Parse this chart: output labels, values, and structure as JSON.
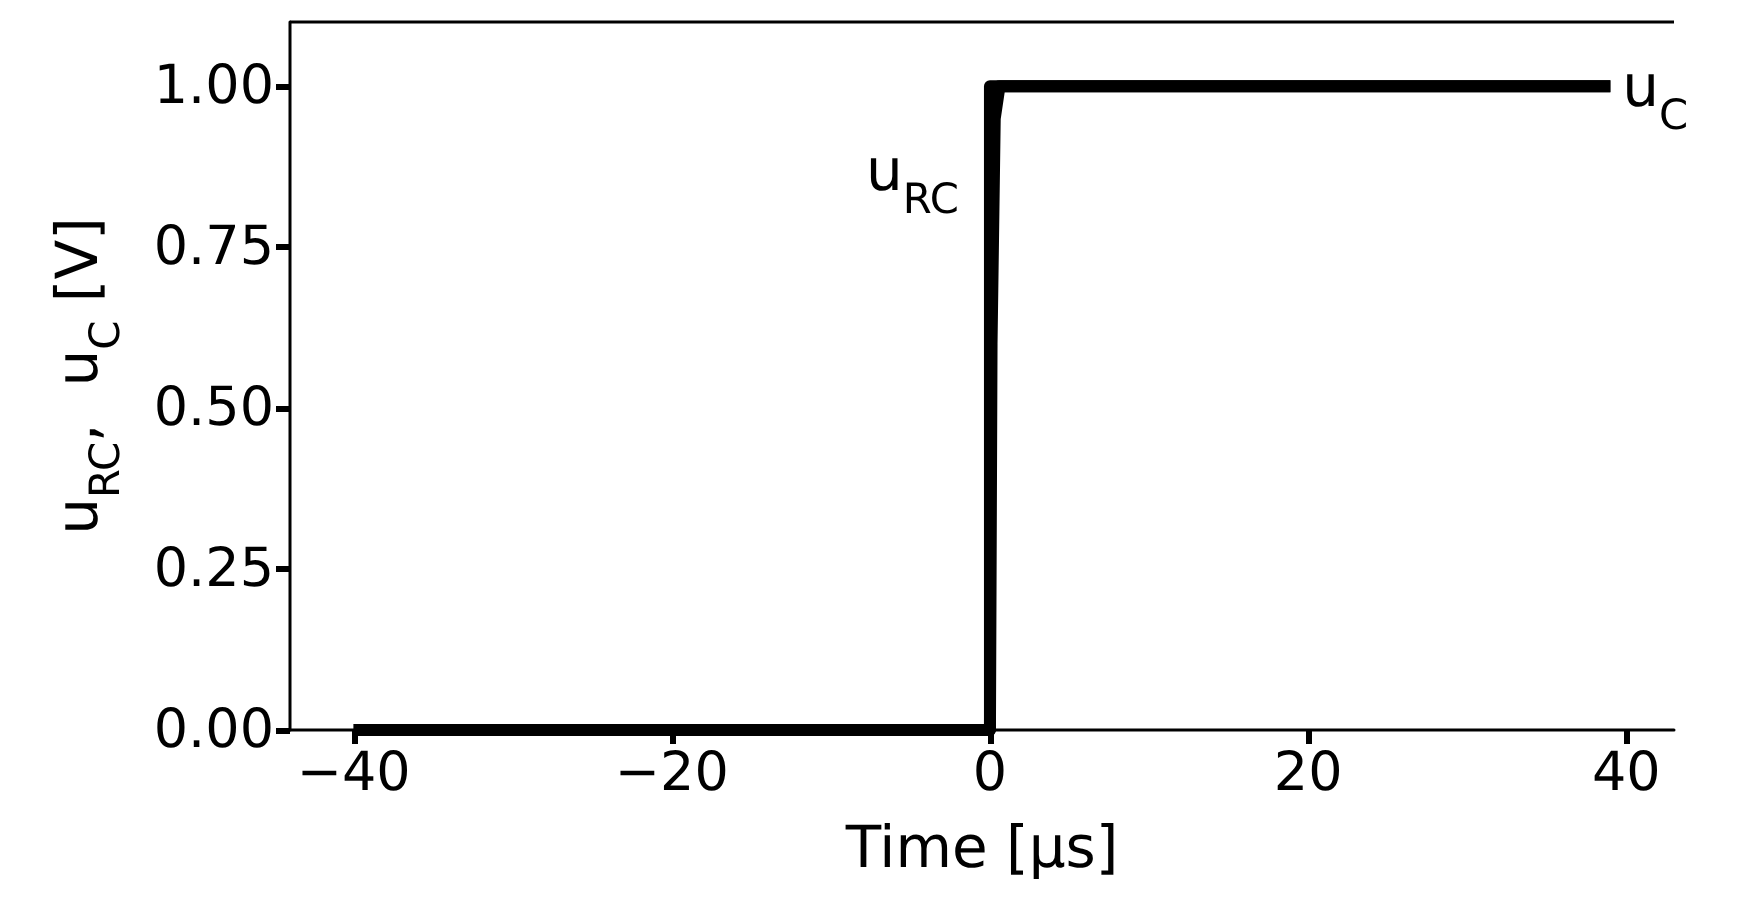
{
  "chart_data": {
    "type": "line",
    "xlabel": "Time [µs]",
    "ylabel": "u$_{RC}$,  u$_{C}$ [V]",
    "xlim": [
      -44,
      43
    ],
    "xticks": [
      -40,
      -20,
      0,
      20,
      40
    ],
    "ylim": [
      0,
      1.1
    ],
    "yticks": [
      {
        "value": 0,
        "label": "0.00"
      },
      {
        "value": 0.25,
        "label": "0.25"
      },
      {
        "value": 0.5,
        "label": "0.50"
      },
      {
        "value": 0.75,
        "label": "0.75"
      },
      {
        "value": 1,
        "label": "1.00"
      }
    ],
    "series": [
      {
        "name": "u$_{C}$",
        "color": "#000000",
        "x": [
          -40,
          0,
          0.1,
          0.3,
          0.6,
          39
        ],
        "values": [
          0,
          0,
          0.6,
          0.95,
          1,
          1
        ]
      },
      {
        "name": "u$_{RC}$",
        "type": "step",
        "color": "#000000",
        "x": [
          -40,
          0,
          39
        ],
        "values": [
          0,
          1,
          1
        ]
      }
    ],
    "grid": false,
    "marker": "none",
    "line_style": "solid"
  }
}
